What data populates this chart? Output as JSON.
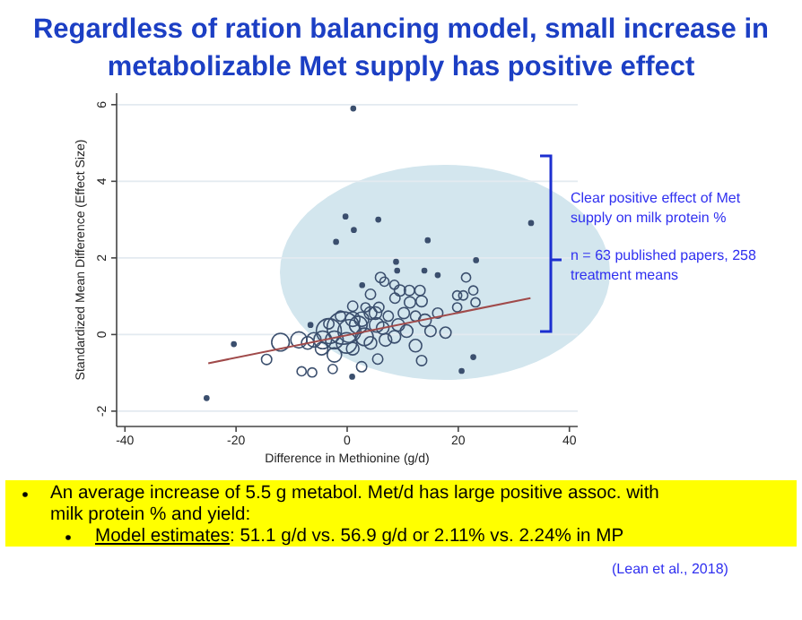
{
  "chart_data": {
    "type": "bubble",
    "title": "Regardless of ration balancing model, small increase in metabolizable Met supply has positive effect",
    "xlabel": "Difference in Methionine (g/d)",
    "ylabel": "Standardized Mean Difference (Effect Size)",
    "xlim": [
      -41.5,
      41.5
    ],
    "ylim": [
      -2.4,
      6.3
    ],
    "xticks": [
      -40,
      -20,
      0,
      20,
      40
    ],
    "yticks": [
      -2,
      0,
      2,
      4,
      6
    ],
    "grid": "y",
    "annotations": [
      "Clear positive effect of Met supply on milk protein %",
      "n = 63 published papers, 258 treatment means",
      "An average increase of 5.5 g metabol. Met/d has large positive assoc. with milk protein % and yield:",
      "Model estimates: 51.1 g/d vs. 56.9 g/d or 2.11% vs. 2.24% in MP",
      "(Lean et al., 2018)"
    ],
    "series": [
      {
        "color": "#3b4f6e",
        "x": [
          -0.3,
          1.2,
          5.6,
          -2,
          14.5,
          33.1,
          -25.3,
          -20.4,
          23.2,
          20.6,
          22.7,
          0.9,
          8.8,
          9,
          13.9,
          16.3,
          2.7,
          -6.6,
          1.1,
          -12,
          -14.5,
          -8.2,
          -6.3,
          -2.6,
          2.6,
          5.5,
          13.4,
          6,
          6.7,
          8.5,
          4.2,
          9.5,
          11.2,
          13.1,
          1,
          3.3,
          5.7,
          8.6,
          11.3,
          13.4,
          16.3,
          17.7,
          15,
          12.3,
          7.4,
          -1.2,
          -3.3,
          -6,
          -8.7,
          -4.6,
          -2.3,
          1,
          4.2,
          6.9,
          10.7,
          12.3,
          -0.7,
          -3.3,
          2,
          3.1,
          5.3,
          9.2,
          14,
          19.8,
          20.9,
          21.4,
          22.7,
          23.1,
          19.8,
          5.1,
          -2.3,
          -0.1,
          -4.4,
          -7.1,
          0.4,
          1,
          2.6,
          6.4,
          8.5,
          10.2,
          4.2
        ],
        "values": [
          3.08,
          2.73,
          3,
          2.42,
          2.46,
          2.91,
          -1.66,
          -0.25,
          1.94,
          -0.95,
          -0.59,
          -1.1,
          1.9,
          1.67,
          1.67,
          1.55,
          1.29,
          0.25,
          5.9,
          -0.2,
          -0.65,
          -0.96,
          -0.99,
          -0.9,
          -0.84,
          -0.64,
          -0.68,
          1.49,
          1.38,
          1.3,
          1.05,
          1.15,
          1.15,
          1.15,
          0.74,
          0.71,
          0.71,
          0.95,
          0.84,
          0.87,
          0.56,
          0.05,
          0.09,
          0.48,
          0.48,
          0.48,
          0.28,
          -0.14,
          -0.14,
          -0.37,
          -0.53,
          -0.37,
          -0.22,
          -0.14,
          0.09,
          -0.29,
          0.17,
          0.09,
          0.25,
          -0.06,
          0.25,
          0.25,
          0.37,
          0.71,
          1.02,
          1.49,
          1.15,
          0.84,
          1.02,
          0.56,
          -0.14,
          -0.22,
          -0.14,
          -0.22,
          0.09,
          0.4,
          0.4,
          0.17,
          -0.06,
          0.56,
          0.56
        ],
        "sizes": [
          0.02,
          0.02,
          0.02,
          0.02,
          0.02,
          0.02,
          0.02,
          0.02,
          0.02,
          0.02,
          0.02,
          0.02,
          0.02,
          0.02,
          0.02,
          0.02,
          0.02,
          0.02,
          0.02,
          0.3,
          0.1,
          0.08,
          0.08,
          0.08,
          0.1,
          0.1,
          0.1,
          0.1,
          0.08,
          0.08,
          0.1,
          0.12,
          0.1,
          0.1,
          0.1,
          0.08,
          0.1,
          0.1,
          0.12,
          0.12,
          0.1,
          0.12,
          0.12,
          0.1,
          0.1,
          0.1,
          0.1,
          0.2,
          0.25,
          0.15,
          0.2,
          0.15,
          0.15,
          0.15,
          0.15,
          0.15,
          1,
          0.6,
          0.3,
          0.3,
          0.2,
          0.15,
          0.15,
          0.08,
          0.08,
          0.08,
          0.08,
          0.08,
          0.08,
          0.15,
          0.3,
          0.4,
          0.3,
          0.15,
          0.5,
          0.2,
          0.2,
          0.15,
          0.15,
          0.12,
          0.15
        ]
      },
      {
        "type": "line",
        "color": "#a04a4a",
        "x": [
          -25,
          33
        ],
        "values": [
          -0.75,
          0.95
        ]
      }
    ]
  }
}
